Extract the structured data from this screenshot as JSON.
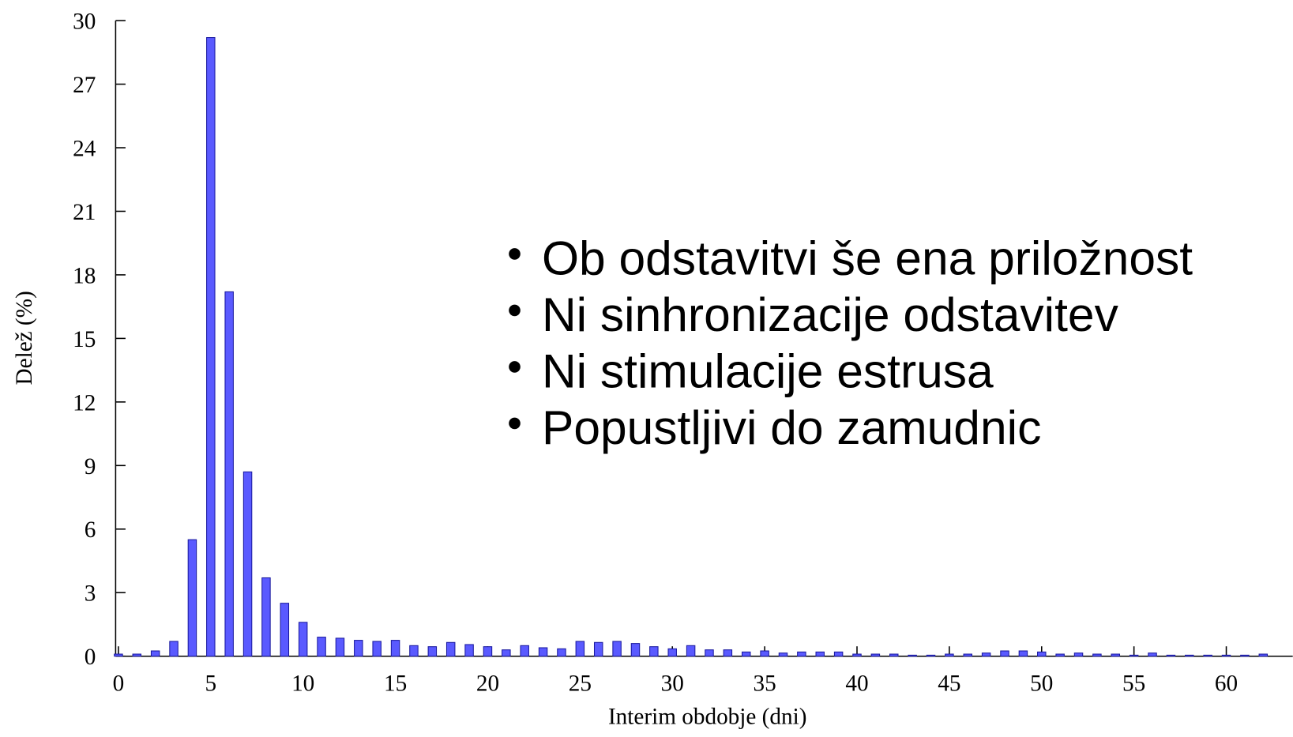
{
  "chart_data": {
    "type": "bar",
    "x": [
      0,
      1,
      2,
      3,
      4,
      5,
      6,
      7,
      8,
      9,
      10,
      11,
      12,
      13,
      14,
      15,
      16,
      17,
      18,
      19,
      20,
      21,
      22,
      23,
      24,
      25,
      26,
      27,
      28,
      29,
      30,
      31,
      32,
      33,
      34,
      35,
      36,
      37,
      38,
      39,
      40,
      41,
      42,
      43,
      44,
      45,
      46,
      47,
      48,
      49,
      50,
      51,
      52,
      53,
      54,
      55,
      56,
      57,
      58,
      59,
      60,
      61,
      62
    ],
    "values": [
      0.1,
      0.1,
      0.25,
      0.7,
      5.5,
      29.2,
      17.2,
      8.7,
      3.7,
      2.5,
      1.6,
      0.9,
      0.85,
      0.75,
      0.7,
      0.75,
      0.5,
      0.45,
      0.65,
      0.55,
      0.45,
      0.3,
      0.5,
      0.4,
      0.35,
      0.7,
      0.65,
      0.7,
      0.6,
      0.45,
      0.35,
      0.5,
      0.3,
      0.3,
      0.2,
      0.25,
      0.15,
      0.2,
      0.2,
      0.2,
      0.1,
      0.1,
      0.1,
      0.05,
      0.05,
      0.1,
      0.1,
      0.15,
      0.25,
      0.25,
      0.2,
      0.1,
      0.15,
      0.1,
      0.1,
      0.05,
      0.15,
      0.05,
      0.05,
      0.05,
      0.05,
      0.05,
      0.1
    ],
    "color": "#5a5aff",
    "xlabel": "Interim obdobje (dni)",
    "ylabel": "Delež (%)",
    "xlim": [
      -0.15,
      63.6
    ],
    "xticks": [
      0,
      5,
      10,
      15,
      20,
      25,
      30,
      35,
      40,
      45,
      50,
      55,
      60
    ],
    "ylim": [
      0,
      30
    ],
    "yticks": [
      0,
      3,
      6,
      9,
      12,
      15,
      18,
      21,
      24,
      27,
      30
    ],
    "bullets": [
      "Ob odstavitvi še ena priložnost",
      "Ni sinhronizacije odstavitev",
      "Ni stimulacije estrusa",
      "Popustljivi do zamudnic"
    ]
  }
}
